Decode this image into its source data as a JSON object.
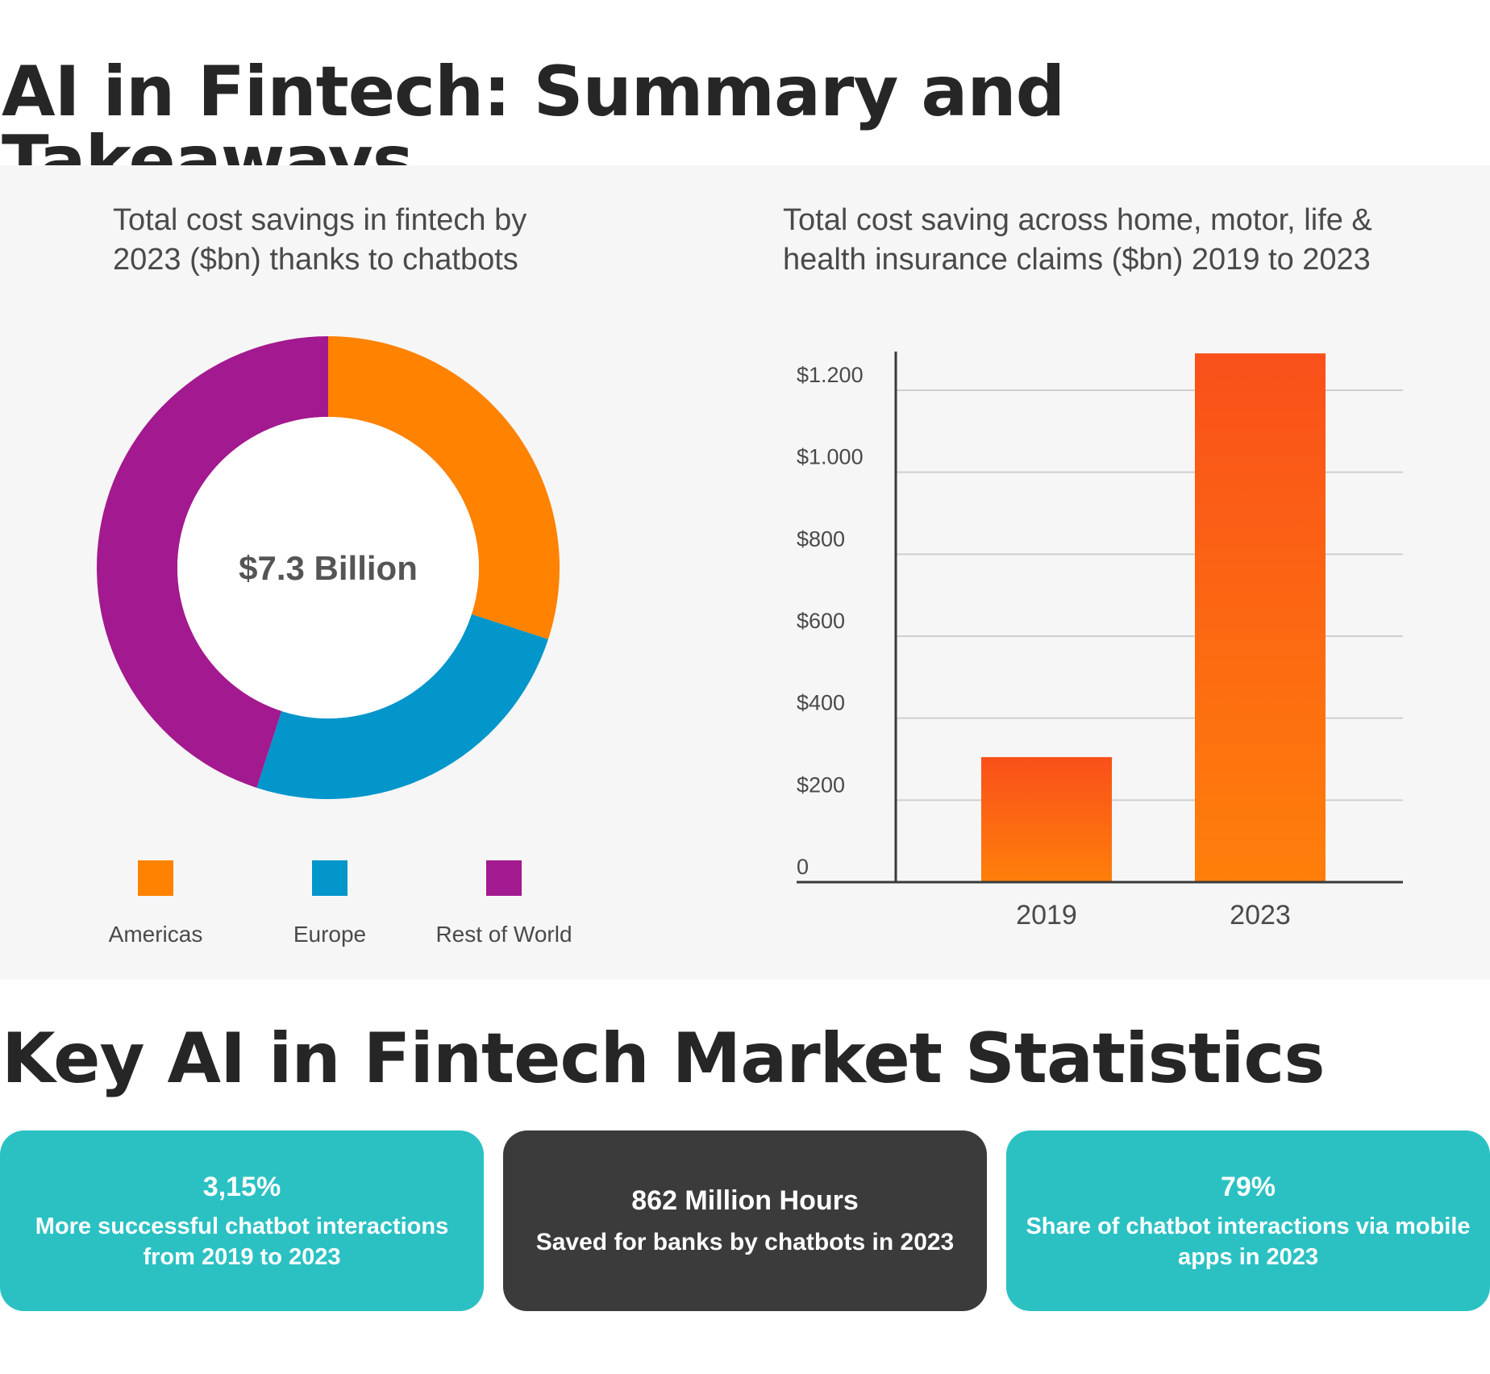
{
  "headings": {
    "main": "AI in Fintech: Summary and Takeaways",
    "stats": "Key AI in Fintech Market Statistics"
  },
  "chart_data": [
    {
      "type": "pie",
      "title": "Total cost savings in fintech by 2023 ($bn) thanks to chatbots",
      "center_label": "$7.3 Billion",
      "legend_position": "bottom",
      "slices": [
        {
          "label": "Americas",
          "value": 30,
          "color": "#ff8200"
        },
        {
          "label": "Europe",
          "value": 25,
          "color": "#0396cb"
        },
        {
          "label": "Rest of World",
          "value": 45,
          "color": "#a3198f"
        }
      ]
    },
    {
      "type": "bar",
      "title": "Total cost saving across home, motor, life & health insurance claims ($bn) 2019 to 2023",
      "categories": [
        "2019",
        "2023"
      ],
      "values": [
        305,
        1290
      ],
      "ylim": [
        0,
        1300
      ],
      "yticks": [
        0,
        200,
        400,
        600,
        800,
        1000,
        1200
      ],
      "ytick_labels": [
        "0",
        "$200",
        "$400",
        "$600",
        "$800",
        "$1.000",
        "$1.200"
      ],
      "grid": true,
      "bar_color_top": "#f9501a",
      "bar_color_bottom": "#ff7f0a"
    }
  ],
  "cards": [
    {
      "value": "3,15%",
      "text": "More successful chatbot interactions from 2019 to 2023",
      "color": "#2bc1c3"
    },
    {
      "value": "862 Million Hours",
      "text": "Saved for banks by chatbots in 2023",
      "color": "#3b3b3b"
    },
    {
      "value": "79%",
      "text": "Share of chatbot interactions via mobile apps in 2023",
      "color": "#2bc1c3"
    }
  ]
}
